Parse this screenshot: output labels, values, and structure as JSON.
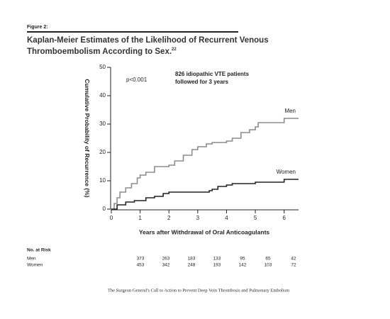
{
  "chart_data": {
    "type": "line",
    "step": true,
    "figure_label": "Figure 2:",
    "title": "Kaplan-Meier Estimates of the Likelihood of Recurrent Venous Thromboembolism According to Sex.",
    "title_note": "22",
    "annotations": [
      "p<0.001",
      "826 idiopathic VTE patients",
      "followed for 3 years"
    ],
    "x_label": "Years after Withdrawal of Oral Anticoagulants",
    "y_label": "Cumulative Probability of Recurrence (%)",
    "xlim": [
      0,
      6.5
    ],
    "ylim": [
      0,
      50
    ],
    "xticks": [
      0,
      1,
      2,
      3,
      4,
      5,
      6
    ],
    "yticks": [
      0,
      10,
      20,
      30,
      40,
      50
    ],
    "series": [
      {
        "name": "Men",
        "color": "#8c8c8c",
        "x": [
          0,
          0.1,
          0.2,
          0.3,
          0.5,
          0.7,
          0.9,
          1,
          1.2,
          1.5,
          2,
          2.2,
          2.5,
          2.8,
          3,
          3.3,
          3.5,
          4,
          4.2,
          4.5,
          4.8,
          5,
          5.1,
          6,
          6.5
        ],
        "values": [
          0,
          2,
          4,
          6,
          7.5,
          9,
          11,
          12,
          13,
          15,
          15.5,
          17,
          19,
          21,
          22,
          23,
          23.5,
          24,
          25,
          27,
          28,
          29,
          30.5,
          32,
          32
        ]
      },
      {
        "name": "Women",
        "color": "#222222",
        "x": [
          0,
          0.2,
          0.5,
          0.8,
          1.2,
          1.5,
          1.8,
          2,
          3.4,
          3.5,
          3.7,
          4,
          4.2,
          5,
          6,
          6.5
        ],
        "values": [
          0,
          1.5,
          2.5,
          3,
          4,
          4.5,
          5.5,
          6,
          6.5,
          7,
          8,
          8.5,
          9,
          9.5,
          10.5,
          10.5
        ]
      }
    ],
    "risk_table": {
      "title": "No. at Risk",
      "rows": [
        {
          "label": "Men",
          "values": [
            373,
            263,
            183,
            133,
            95,
            65,
            42
          ]
        },
        {
          "label": "Women",
          "values": [
            453,
            342,
            248,
            193,
            142,
            103,
            72
          ]
        }
      ]
    },
    "source": "The Surgeon General's Call to Action to Prevent Deep Vein Thrombosis and Pulmonary Embolism"
  }
}
